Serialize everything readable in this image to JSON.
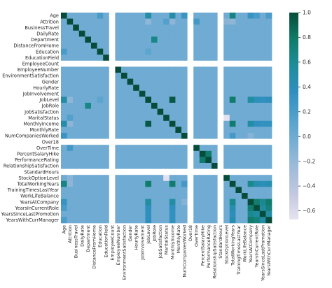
{
  "chart_data": {
    "type": "heatmap",
    "title": "",
    "xlabel": "",
    "ylabel": "",
    "labels": [
      "Age",
      "Attrition",
      "BusinessTravel",
      "DailyRate",
      "Department",
      "DistanceFromHome",
      "Education",
      "EducationField",
      "EmployeeCount",
      "EmployeeNumber",
      "EnvironmentSatisfaction",
      "Gender",
      "HourlyRate",
      "JobInvolvement",
      "JobLevel",
      "JobRole",
      "JobSatisfaction",
      "MaritalStatus",
      "MonthlyIncome",
      "MonthlyRate",
      "NumCompaniesWorked",
      "Over18",
      "OverTime",
      "PercentSalaryHike",
      "PerformanceRating",
      "RelationshipSatisfaction",
      "StandardHours",
      "StockOptionLevel",
      "TotalWorkingYears",
      "TrainingTimesLastYear",
      "WorkLifeBalance",
      "YearsAtCompany",
      "YearsInCurrentRole",
      "YearsSinceLastPromotion",
      "YearsWithCurrManager"
    ],
    "missing_labels": [
      "EmployeeCount",
      "Over18",
      "StandardHours"
    ],
    "notable_values": [
      {
        "row": "Age",
        "col": "JobLevel",
        "value": 0.51
      },
      {
        "row": "Age",
        "col": "MonthlyIncome",
        "value": 0.5
      },
      {
        "row": "Age",
        "col": "TotalWorkingYears",
        "value": 0.68
      },
      {
        "row": "Age",
        "col": "YearsAtCompany",
        "value": 0.31
      },
      {
        "row": "Age",
        "col": "YearsInCurrentRole",
        "value": 0.21
      },
      {
        "row": "Age",
        "col": "YearsWithCurrManager",
        "value": 0.2
      },
      {
        "row": "Age",
        "col": "NumCompaniesWorked",
        "value": 0.3
      },
      {
        "row": "Age",
        "col": "Education",
        "value": 0.21
      },
      {
        "row": "Attrition",
        "col": "OverTime",
        "value": 0.25
      },
      {
        "row": "Attrition",
        "col": "MaritalStatus",
        "value": 0.16
      },
      {
        "row": "Attrition",
        "col": "TotalWorkingYears",
        "value": -0.17
      },
      {
        "row": "Attrition",
        "col": "JobLevel",
        "value": -0.17
      },
      {
        "row": "Attrition",
        "col": "MonthlyIncome",
        "value": -0.16
      },
      {
        "row": "Attrition",
        "col": "StockOptionLevel",
        "value": -0.14
      },
      {
        "row": "Department",
        "col": "JobRole",
        "value": 0.66
      },
      {
        "row": "JobLevel",
        "col": "MonthlyIncome",
        "value": 0.95
      },
      {
        "row": "JobLevel",
        "col": "TotalWorkingYears",
        "value": 0.78
      },
      {
        "row": "JobLevel",
        "col": "YearsAtCompany",
        "value": 0.53
      },
      {
        "row": "JobLevel",
        "col": "YearsInCurrentRole",
        "value": 0.39
      },
      {
        "row": "JobLevel",
        "col": "YearsWithCurrManager",
        "value": 0.38
      },
      {
        "row": "JobLevel",
        "col": "YearsSinceLastPromotion",
        "value": 0.35
      },
      {
        "row": "JobLevel",
        "col": "Education",
        "value": 0.1
      },
      {
        "row": "MonthlyIncome",
        "col": "TotalWorkingYears",
        "value": 0.77
      },
      {
        "row": "MonthlyIncome",
        "col": "YearsAtCompany",
        "value": 0.51
      },
      {
        "row": "MonthlyIncome",
        "col": "YearsInCurrentRole",
        "value": 0.36
      },
      {
        "row": "MonthlyIncome",
        "col": "YearsWithCurrManager",
        "value": 0.34
      },
      {
        "row": "MonthlyIncome",
        "col": "YearsSinceLastPromotion",
        "value": 0.34
      },
      {
        "row": "MaritalStatus",
        "col": "StockOptionLevel",
        "value": -0.66
      },
      {
        "row": "NumCompaniesWorked",
        "col": "TotalWorkingYears",
        "value": 0.24
      },
      {
        "row": "NumCompaniesWorked",
        "col": "YearsAtCompany",
        "value": -0.12
      },
      {
        "row": "PercentSalaryHike",
        "col": "PerformanceRating",
        "value": 0.77
      },
      {
        "row": "TotalWorkingYears",
        "col": "YearsAtCompany",
        "value": 0.63
      },
      {
        "row": "TotalWorkingYears",
        "col": "YearsInCurrentRole",
        "value": 0.46
      },
      {
        "row": "TotalWorkingYears",
        "col": "YearsSinceLastPromotion",
        "value": 0.4
      },
      {
        "row": "TotalWorkingYears",
        "col": "YearsWithCurrManager",
        "value": 0.46
      },
      {
        "row": "YearsAtCompany",
        "col": "YearsInCurrentRole",
        "value": 0.76
      },
      {
        "row": "YearsAtCompany",
        "col": "YearsSinceLastPromotion",
        "value": 0.62
      },
      {
        "row": "YearsAtCompany",
        "col": "YearsWithCurrManager",
        "value": 0.77
      },
      {
        "row": "YearsInCurrentRole",
        "col": "YearsSinceLastPromotion",
        "value": 0.55
      },
      {
        "row": "YearsInCurrentRole",
        "col": "YearsWithCurrManager",
        "value": 0.71
      },
      {
        "row": "YearsSinceLastPromotion",
        "col": "YearsWithCurrManager",
        "value": 0.51
      },
      {
        "row": "EnvironmentSatisfaction",
        "col": "EmployeeNumber",
        "value": 0.02
      },
      {
        "row": "BusinessTravel",
        "col": "Attrition",
        "value": 0.0
      }
    ],
    "default_value": 0.0,
    "colorbar": {
      "vmin": -0.67,
      "vmax": 1.0,
      "ticks": [
        "1.0",
        "0.8",
        "0.6",
        "0.4",
        "0.2",
        "0.0",
        "−0.2",
        "−0.4",
        "−0.6"
      ],
      "tick_values": [
        1.0,
        0.8,
        0.6,
        0.4,
        0.2,
        0.0,
        -0.2,
        -0.4,
        -0.6
      ],
      "cmap_stops": [
        "#e6e3f0",
        "#c4c8e0",
        "#96b8d8",
        "#5fa6cf",
        "#2f8fbf",
        "#1f8c99",
        "#0f7a66",
        "#074c3a"
      ]
    },
    "missing_color": "#ffffff",
    "grid": false,
    "legend": "right"
  }
}
